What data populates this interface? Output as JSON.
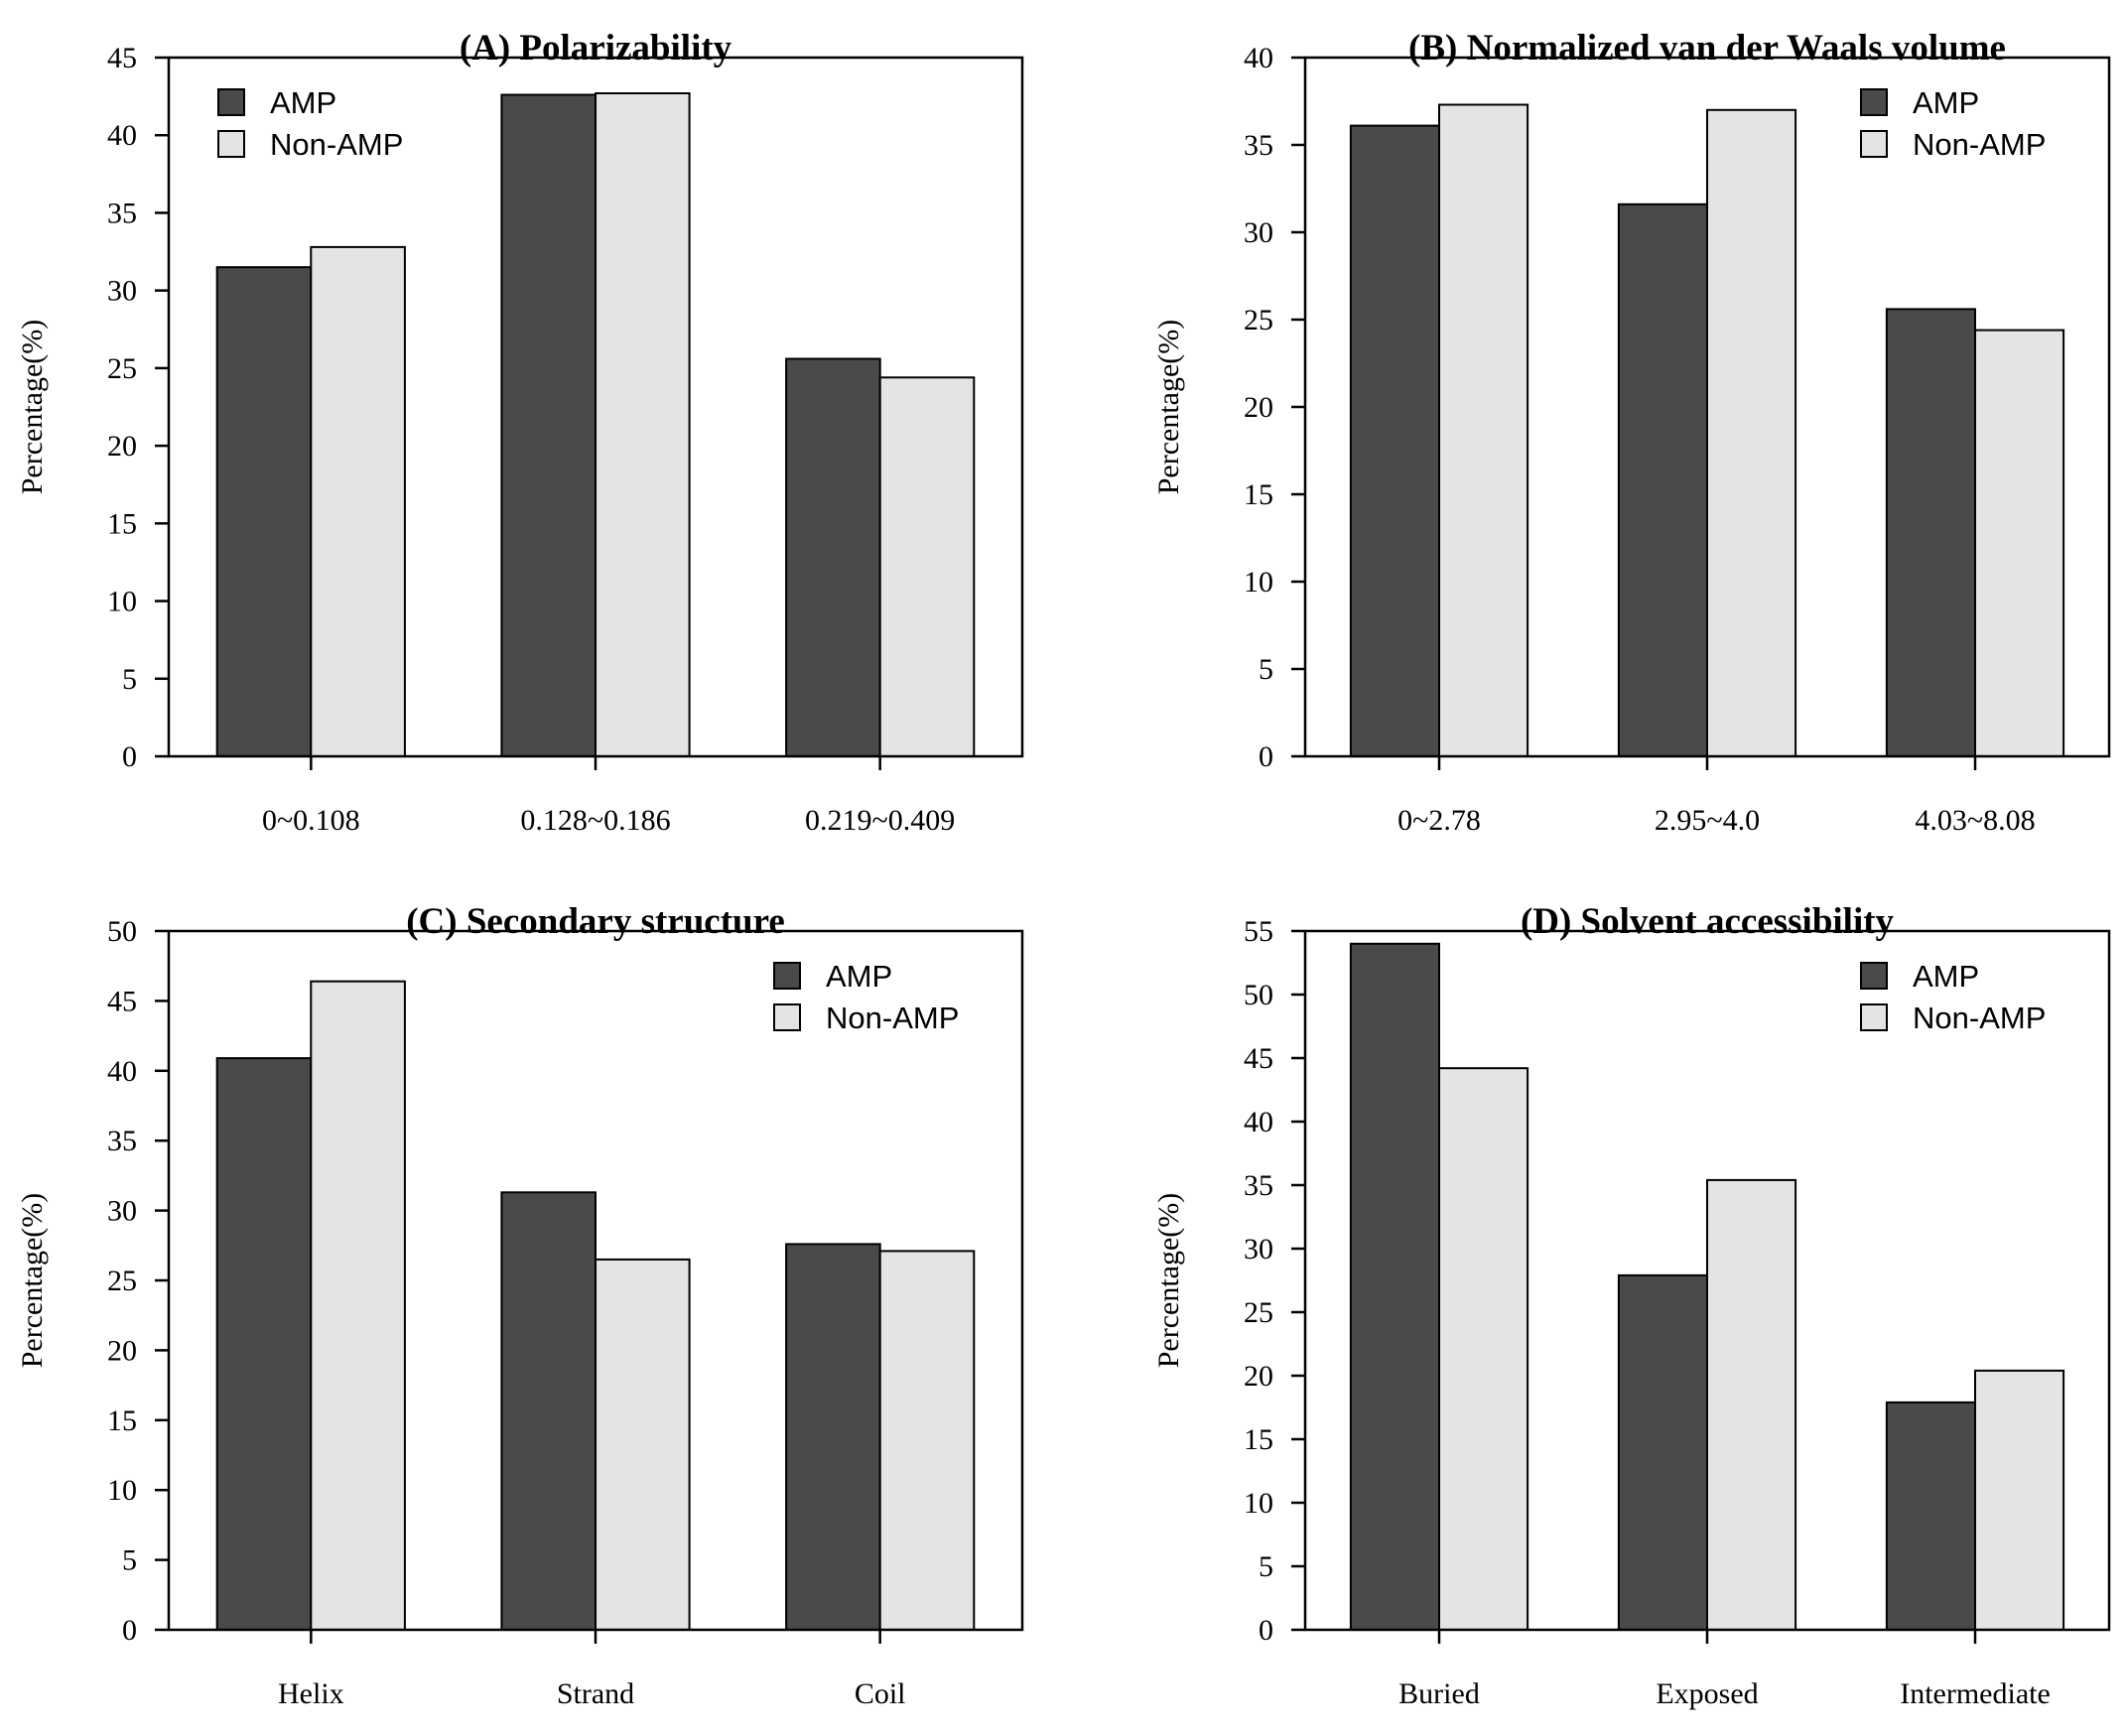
{
  "chart_data": [
    {
      "id": "A",
      "type": "bar",
      "title": "(A) Polarizability",
      "ylabel": "Percentage(%)",
      "xlabel": "",
      "ylim": [
        0,
        45
      ],
      "yticks": [
        0,
        5,
        10,
        15,
        20,
        25,
        30,
        35,
        40,
        45
      ],
      "categories": [
        "0~0.108",
        "0.128~0.186",
        "0.219~0.409"
      ],
      "legend_position": "top-left",
      "series": [
        {
          "name": "AMP",
          "color": "#4a4a4a",
          "values": [
            31.5,
            42.6,
            25.6
          ]
        },
        {
          "name": "Non-AMP",
          "color": "#e4e4e4",
          "values": [
            32.8,
            42.7,
            24.4
          ]
        }
      ]
    },
    {
      "id": "B",
      "type": "bar",
      "title": "(B) Normalized van der Waals volume",
      "ylabel": "Percentage(%)",
      "xlabel": "",
      "ylim": [
        0,
        40
      ],
      "yticks": [
        0,
        5,
        10,
        15,
        20,
        25,
        30,
        35,
        40
      ],
      "categories": [
        "0~2.78",
        "2.95~4.0",
        "4.03~8.08"
      ],
      "legend_position": "top-right",
      "series": [
        {
          "name": "AMP",
          "color": "#4a4a4a",
          "values": [
            36.1,
            31.6,
            25.6
          ]
        },
        {
          "name": "Non-AMP",
          "color": "#e4e4e4",
          "values": [
            37.3,
            37.0,
            24.4
          ]
        }
      ]
    },
    {
      "id": "C",
      "type": "bar",
      "title": "(C) Secondary structure",
      "ylabel": "Percentage(%)",
      "xlabel": "",
      "ylim": [
        0,
        50
      ],
      "yticks": [
        0,
        5,
        10,
        15,
        20,
        25,
        30,
        35,
        40,
        45,
        50
      ],
      "categories": [
        "Helix",
        "Strand",
        "Coil"
      ],
      "legend_position": "top-right",
      "series": [
        {
          "name": "AMP",
          "color": "#4a4a4a",
          "values": [
            40.9,
            31.3,
            27.6
          ]
        },
        {
          "name": "Non-AMP",
          "color": "#e4e4e4",
          "values": [
            46.4,
            26.5,
            27.1
          ]
        }
      ]
    },
    {
      "id": "D",
      "type": "bar",
      "title": "(D) Solvent accessibility",
      "ylabel": "Percentage(%)",
      "xlabel": "",
      "ylim": [
        0,
        55
      ],
      "yticks": [
        0,
        5,
        10,
        15,
        20,
        25,
        30,
        35,
        40,
        45,
        50,
        55
      ],
      "categories": [
        "Buried",
        "Exposed",
        "Intermediate"
      ],
      "legend_position": "top-right",
      "series": [
        {
          "name": "AMP",
          "color": "#4a4a4a",
          "values": [
            54.0,
            27.9,
            17.9
          ]
        },
        {
          "name": "Non-AMP",
          "color": "#e4e4e4",
          "values": [
            44.2,
            35.4,
            20.4
          ]
        }
      ]
    }
  ]
}
